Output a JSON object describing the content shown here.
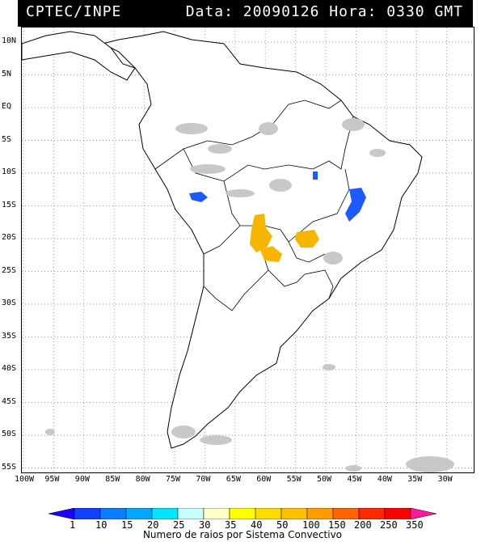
{
  "header": {
    "agency": "CPTEC/INPE",
    "datetime": "Data: 20090126 Hora: 0330 GMT"
  },
  "map": {
    "lat_labels": [
      "10N",
      "5N",
      "EQ",
      "5S",
      "10S",
      "15S",
      "20S",
      "25S",
      "30S",
      "35S",
      "40S",
      "45S",
      "50S",
      "55S"
    ],
    "lon_labels": [
      "100W",
      "95W",
      "90W",
      "85W",
      "80W",
      "75W",
      "70W",
      "65W",
      "60W",
      "55W",
      "50W",
      "45W",
      "40W",
      "35W",
      "30W"
    ],
    "colors": {
      "land": "#ffffff",
      "coast": "#000000",
      "grid": "#9a9a9a",
      "cloud": "#c8c8c8",
      "storm_orange": "#f7b500",
      "storm_blue": "#1a5aff"
    }
  },
  "legend": {
    "values": [
      "1",
      "10",
      "15",
      "20",
      "25",
      "30",
      "35",
      "40",
      "50",
      "100",
      "150",
      "200",
      "250",
      "350"
    ],
    "colors": [
      "#1e00ff",
      "#1140ff",
      "#0b7dff",
      "#00a8ff",
      "#00e6ff",
      "#c8ffff",
      "#ffffc8",
      "#ffff00",
      "#ffdc00",
      "#ffc000",
      "#ff9c00",
      "#ff6400",
      "#ff2800",
      "#ff0000",
      "#ff1a9c"
    ],
    "caption": "Numero de raios por Sistema Convectivo"
  }
}
